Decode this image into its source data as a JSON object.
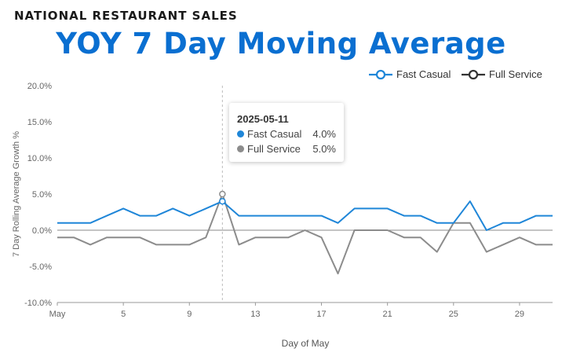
{
  "header": {
    "kicker": "NATIONAL RESTAURANT SALES",
    "title": "YOY 7 Day Moving Average"
  },
  "colors": {
    "fast_casual": "#1f86d8",
    "full_service": "#8c8c8c",
    "title": "#0a6fd1"
  },
  "chart_data": {
    "type": "line",
    "title": "YOY 7 Day Moving Average",
    "xlabel": "Day of May",
    "ylabel": "7 Day Rolling Average Growth %",
    "x": [
      1,
      2,
      3,
      4,
      5,
      6,
      7,
      8,
      9,
      10,
      11,
      12,
      13,
      14,
      15,
      16,
      17,
      18,
      19,
      20,
      21,
      22,
      23,
      24,
      25,
      26,
      27,
      28,
      29,
      30,
      31
    ],
    "xlim": [
      1,
      31
    ],
    "x_ticks": [
      1,
      5,
      9,
      13,
      17,
      21,
      25,
      29
    ],
    "x_tick_labels": [
      "May",
      "5",
      "9",
      "13",
      "17",
      "21",
      "25",
      "29"
    ],
    "ylim": [
      -10,
      20
    ],
    "y_ticks": [
      20,
      15,
      10,
      5,
      0,
      -5,
      -10
    ],
    "y_tick_labels": [
      "20.0%",
      "15.0%",
      "10.0%",
      "5.0%",
      "0.0%",
      "-5.0%",
      "-10.0%"
    ],
    "grid": false,
    "legend_position": "top-right",
    "series": [
      {
        "name": "Fast Casual",
        "color": "#1f86d8",
        "values": [
          1,
          1,
          1,
          2,
          3,
          2,
          2,
          3,
          2,
          3,
          4,
          2,
          2,
          2,
          2,
          2,
          2,
          1,
          3,
          3,
          3,
          2,
          2,
          1,
          1,
          4,
          0,
          1,
          1,
          2,
          2
        ]
      },
      {
        "name": "Full Service",
        "color": "#8c8c8c",
        "values": [
          -1,
          -1,
          -2,
          -1,
          -1,
          -1,
          -2,
          -2,
          -2,
          -1,
          5,
          -2,
          -1,
          -1,
          -1,
          0,
          -1,
          -6,
          0,
          0,
          0,
          -1,
          -1,
          -3,
          1,
          1,
          -3,
          -2,
          -1,
          -2,
          -2
        ]
      }
    ],
    "tooltip": {
      "date": "2025-05-11",
      "x": 11,
      "rows": [
        {
          "label": "Fast Casual",
          "value": "4.0%"
        },
        {
          "label": "Full Service",
          "value": "5.0%"
        }
      ]
    }
  }
}
